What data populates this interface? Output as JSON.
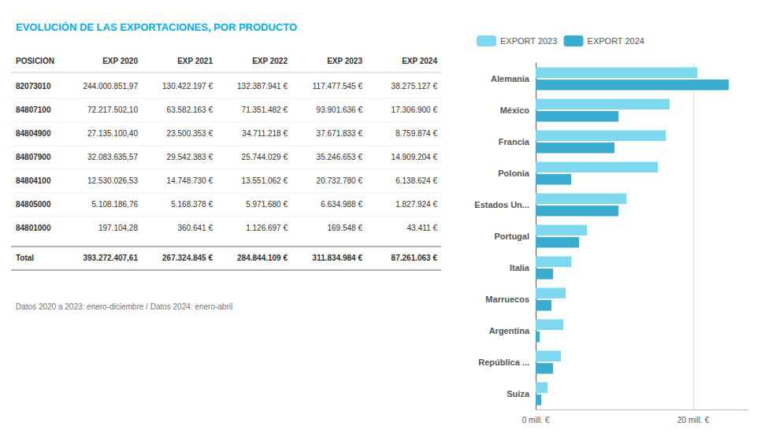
{
  "chart_data": [
    {
      "type": "table",
      "title": "EVOLUCIÓN DE LAS EXPORTACIONES, POR PRODUCTO",
      "color": "#00AEEF",
      "columns": [
        "POSICION",
        "EXP 2020",
        "EXP 2021",
        "EXP 2022",
        "EXP 2023",
        "EXP 2024"
      ],
      "rows": [
        [
          "82073010",
          "244.000.851,97",
          "130.422.197 €",
          "132.387.941 €",
          "117.477.545 €",
          "38.275.127 €"
        ],
        [
          "84807100",
          "72.217.502,10",
          "63.582.163 €",
          "71.351.482 €",
          "93.901.636 €",
          "17.306.900 €"
        ],
        [
          "84804900",
          "27.135.100,40",
          "23.500.353 €",
          "34.711.218 €",
          "37.671.833 €",
          "8.759.874 €"
        ],
        [
          "84807900",
          "32.083.635,57",
          "29.542.383 €",
          "25.744.029 €",
          "35.246.653 €",
          "14.909.204 €"
        ],
        [
          "84804100",
          "12.530.026,53",
          "14.748.730 €",
          "13.551.062 €",
          "20.732.780 €",
          "6.138.624 €"
        ],
        [
          "84805000",
          "5.108.186,76",
          "5.168.378 €",
          "5.971.680 €",
          "6.634.988 €",
          "1.827.924 €"
        ],
        [
          "84801000",
          "197.104,28",
          "360.641 €",
          "1.126.697 €",
          "169.548 €",
          "43.411 €"
        ],
        [
          "Total",
          "393.272.407,61",
          "267.324.845 €",
          "284.844.109 €",
          "311.834.984 €",
          "87.261.063 €"
        ]
      ],
      "annotations": [
        "Datos 2020 a 2023: enero-diciembre / ",
        "Datos 2024: enero-abril"
      ]
    },
    {
      "type": "bar",
      "orientation": "horizontal",
      "categories": [
        "Alemania",
        "México",
        "Francia",
        "Polonia",
        "Estados Un...",
        "Portugal",
        "Italia",
        "Marruecos",
        "Argentina",
        "República ...",
        "Suiza"
      ],
      "series": [
        {
          "name": "EXPORT 2023",
          "color": "#7DD8F0",
          "values": [
            20.5,
            17.0,
            16.5,
            15.5,
            11.5,
            6.5,
            4.5,
            3.8,
            3.5,
            3.2,
            1.5
          ]
        },
        {
          "name": "EXPORT 2024",
          "color": "#3AACCF",
          "values": [
            24.5,
            10.5,
            10.0,
            4.5,
            10.5,
            5.5,
            2.2,
            2.0,
            0.5,
            2.2,
            0.7
          ]
        }
      ],
      "xlim": [
        0,
        27
      ],
      "xticks": [
        {
          "value": 0,
          "label": "0 mill. €"
        },
        {
          "value": 20,
          "label": "20 mill. €"
        }
      ],
      "grid": true,
      "legend": "upper left"
    }
  ]
}
